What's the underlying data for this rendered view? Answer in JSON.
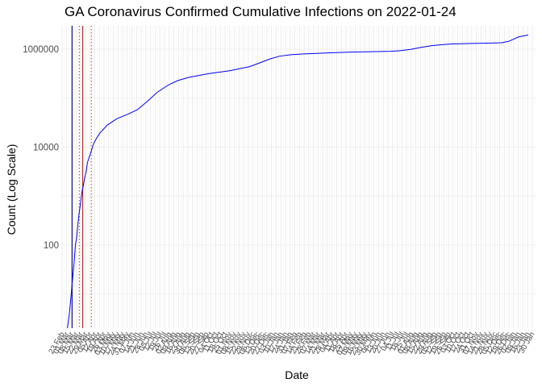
{
  "chart_data": {
    "type": "line",
    "title": "GA Coronavirus Confirmed Cumulative Infections on 2022-01-24",
    "xlabel": "Date",
    "ylabel": "Count (Log Scale)",
    "y_scale": "log10",
    "ylim": [
      2,
      3000000
    ],
    "y_ticks": [
      100,
      10000,
      1000000
    ],
    "y_tick_labels": [
      "100",
      "10000",
      "1000000"
    ],
    "xlim": [
      "2020-02-23",
      "2022-02-04"
    ],
    "x_tick_every_days": 7,
    "grid": true,
    "series": [
      {
        "color": "#0000ff",
        "points": [
          [
            "2020-03-02",
            2
          ],
          [
            "2020-03-05",
            4
          ],
          [
            "2020-03-08",
            11
          ],
          [
            "2020-03-10",
            22
          ],
          [
            "2020-03-12",
            42
          ],
          [
            "2020-03-14",
            99
          ],
          [
            "2020-03-16",
            146
          ],
          [
            "2020-03-18",
            287
          ],
          [
            "2020-03-20",
            485
          ],
          [
            "2020-03-22",
            772
          ],
          [
            "2020-03-24",
            1247
          ],
          [
            "2020-03-26",
            1643
          ],
          [
            "2020-03-28",
            2366
          ],
          [
            "2020-03-30",
            3032
          ],
          [
            "2020-04-01",
            4748
          ],
          [
            "2020-04-03",
            5831
          ],
          [
            "2020-04-06",
            7558
          ],
          [
            "2020-04-10",
            11483
          ],
          [
            "2020-04-15",
            15409
          ],
          [
            "2020-04-20",
            19407
          ],
          [
            "2020-05-01",
            28196
          ],
          [
            "2020-05-15",
            37701
          ],
          [
            "2020-06-01",
            47063
          ],
          [
            "2020-06-15",
            57681
          ],
          [
            "2020-07-01",
            87709
          ],
          [
            "2020-07-15",
            131275
          ],
          [
            "2020-08-01",
            186352
          ],
          [
            "2020-08-15",
            228668
          ],
          [
            "2020-09-01",
            266206
          ],
          [
            "2020-10-01",
            317409
          ],
          [
            "2020-11-01",
            361825
          ],
          [
            "2020-12-01",
            440196
          ],
          [
            "2020-12-15",
            516520
          ],
          [
            "2021-01-01",
            634235
          ],
          [
            "2021-01-15",
            718341
          ],
          [
            "2021-02-01",
            768290
          ],
          [
            "2021-02-15",
            791250
          ],
          [
            "2021-03-01",
            808370
          ],
          [
            "2021-04-01",
            842350
          ],
          [
            "2021-05-01",
            869925
          ],
          [
            "2021-06-01",
            889210
          ],
          [
            "2021-07-01",
            906075
          ],
          [
            "2021-07-15",
            930120
          ],
          [
            "2021-08-01",
            994575
          ],
          [
            "2021-08-15",
            1082500
          ],
          [
            "2021-09-01",
            1178700
          ],
          [
            "2021-09-15",
            1228600
          ],
          [
            "2021-10-01",
            1276300
          ],
          [
            "2021-10-15",
            1290900
          ],
          [
            "2021-11-01",
            1308100
          ],
          [
            "2021-12-01",
            1330900
          ],
          [
            "2021-12-15",
            1355600
          ],
          [
            "2021-12-25",
            1437500
          ],
          [
            "2022-01-01",
            1580000
          ],
          [
            "2022-01-10",
            1790000
          ],
          [
            "2022-01-24",
            1950000
          ]
        ]
      }
    ],
    "reference_lines": [
      {
        "x": "2020-03-09",
        "color": "#00008b",
        "style": "solid"
      },
      {
        "x": "2020-03-25",
        "color": "#b22222",
        "style": "solid"
      },
      {
        "x": "2020-03-20",
        "color": "#ff4500",
        "style": "dotted"
      },
      {
        "x": "2020-04-07",
        "color": "#ff4500",
        "style": "dotted"
      }
    ]
  }
}
